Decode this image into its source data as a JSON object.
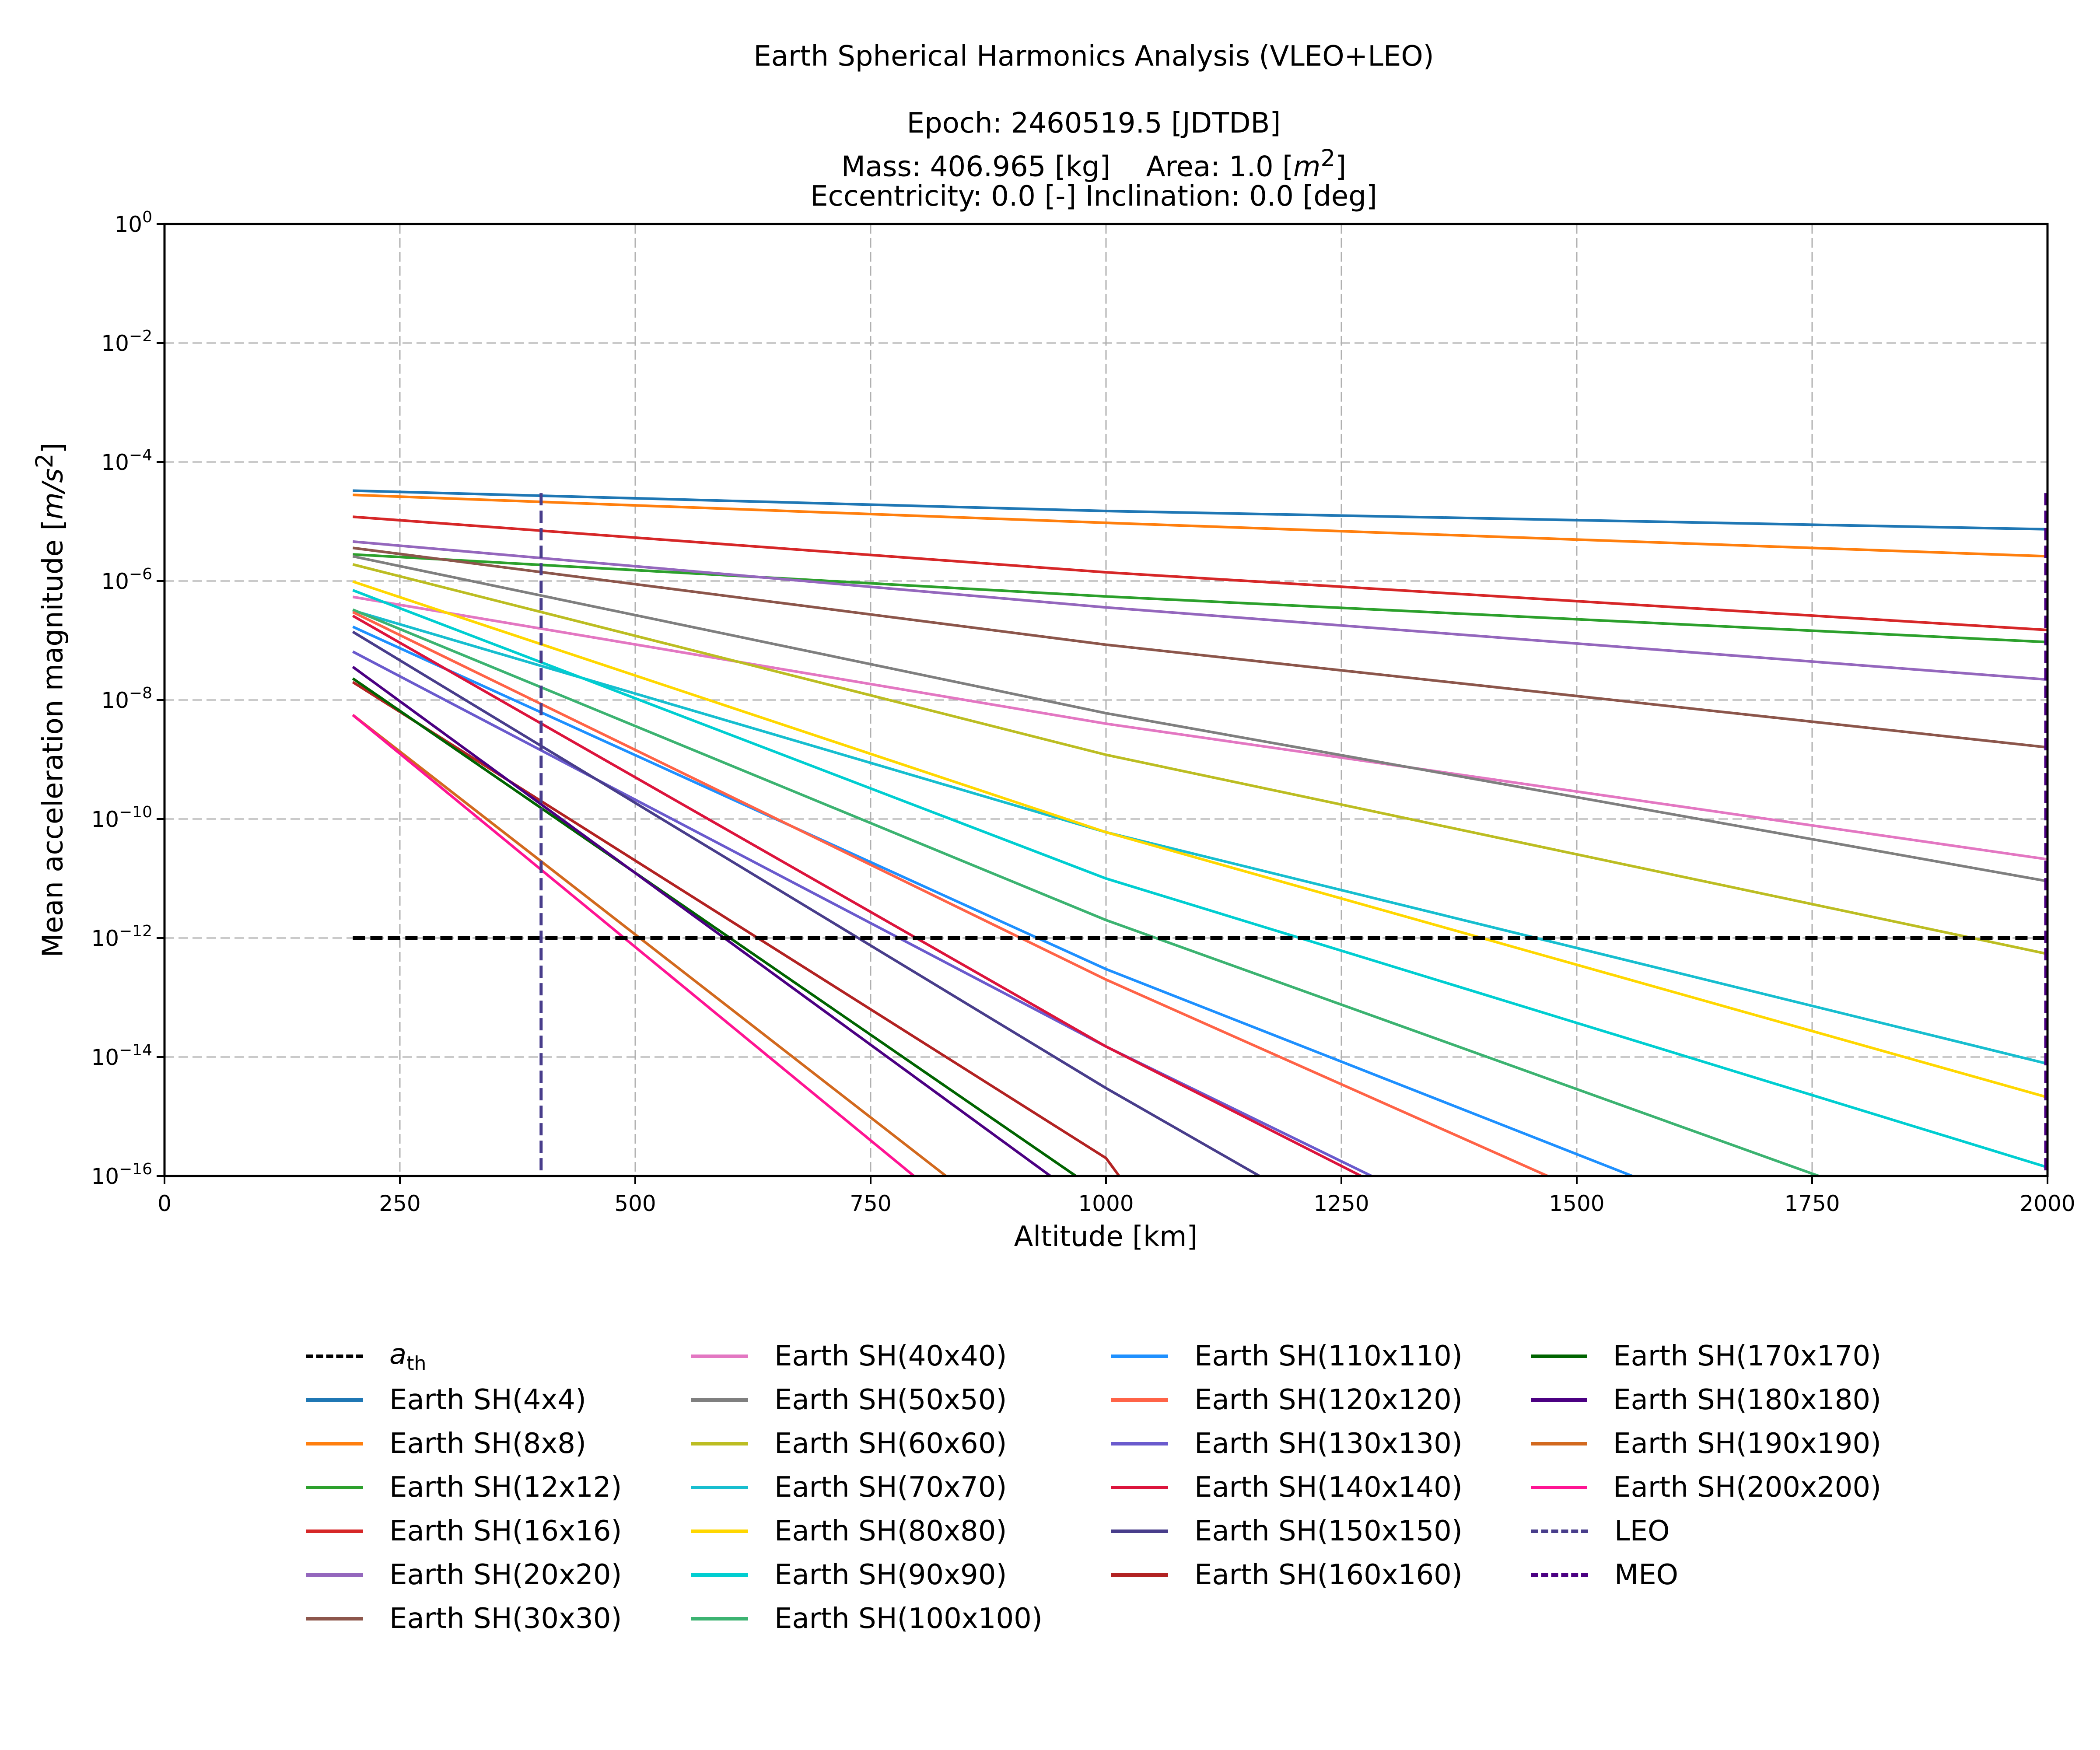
{
  "chart_data": {
    "type": "line",
    "title": "Earth Spherical Harmonics Analysis (VLEO+LEO)",
    "subtitle_lines": [
      "Epoch: 2460519.5 [JDTDB]",
      "Mass: 406.965 [kg]    Area: 1.0 [m^2]",
      "Eccentricity: 0.0 [-]    Inclination: 0.0 [deg]"
    ],
    "xlabel": "Altitude [km]",
    "ylabel": "Mean acceleration magnitude [m/s^2]",
    "xlim": [
      0,
      2000
    ],
    "ylim": [
      1e-16,
      1
    ],
    "yscale": "log",
    "grid": true,
    "xticks": [
      0,
      250,
      500,
      750,
      1000,
      1250,
      1500,
      1750,
      2000
    ],
    "yticks_exp": [
      0,
      -2,
      -4,
      -6,
      -8,
      -10,
      -12,
      -14,
      -16
    ],
    "legend_position": "below plot, 4 columns",
    "reference_lines": [
      {
        "name": "a_th",
        "type": "horizontal",
        "y": 1e-12,
        "x_range": [
          200,
          2000
        ],
        "color": "#000000",
        "style": "dashed"
      },
      {
        "name": "LEO",
        "type": "vertical",
        "x": 400,
        "y_range": [
          1e-16,
          3e-05
        ],
        "color": "#483d8b",
        "style": "dashed"
      },
      {
        "name": "MEO",
        "type": "vertical",
        "x": 2000,
        "y_range": [
          1e-16,
          3e-05
        ],
        "color": "#4b0082",
        "style": "dashed"
      }
    ],
    "series": [
      {
        "name": "Earth SH(4x4)",
        "color": "#1f77b4",
        "points": [
          [
            200,
            3.3e-05
          ],
          [
            1000,
            1.5e-05
          ],
          [
            2000,
            7.4e-06
          ]
        ]
      },
      {
        "name": "Earth SH(8x8)",
        "color": "#ff7f0e",
        "points": [
          [
            200,
            2.8e-05
          ],
          [
            1000,
            9.5e-06
          ],
          [
            2000,
            2.6e-06
          ]
        ]
      },
      {
        "name": "Earth SH(12x12)",
        "color": "#2ca02c",
        "points": [
          [
            200,
            2.8e-06
          ],
          [
            1000,
            5.5e-07
          ],
          [
            2000,
            9.4e-08
          ]
        ]
      },
      {
        "name": "Earth SH(16x16)",
        "color": "#d62728",
        "points": [
          [
            200,
            1.2e-05
          ],
          [
            1000,
            1.4e-06
          ],
          [
            2000,
            1.5e-07
          ]
        ]
      },
      {
        "name": "Earth SH(20x20)",
        "color": "#9467bd",
        "points": [
          [
            200,
            4.6e-06
          ],
          [
            1000,
            3.6e-07
          ],
          [
            2000,
            2.2e-08
          ]
        ]
      },
      {
        "name": "Earth SH(30x30)",
        "color": "#8c564b",
        "points": [
          [
            200,
            3.6e-06
          ],
          [
            1000,
            8.5e-08
          ],
          [
            2000,
            1.6e-09
          ]
        ]
      },
      {
        "name": "Earth SH(40x40)",
        "color": "#e377c2",
        "points": [
          [
            200,
            5.4e-07
          ],
          [
            1000,
            4e-09
          ],
          [
            2000,
            2.1e-11
          ]
        ]
      },
      {
        "name": "Earth SH(50x50)",
        "color": "#7f7f7f",
        "points": [
          [
            200,
            2.6e-06
          ],
          [
            1000,
            6e-09
          ],
          [
            2000,
            9e-12
          ]
        ]
      },
      {
        "name": "Earth SH(60x60)",
        "color": "#bcbd22",
        "points": [
          [
            200,
            1.9e-06
          ],
          [
            1000,
            1.2e-09
          ],
          [
            2000,
            5.4e-13
          ]
        ]
      },
      {
        "name": "Earth SH(70x70)",
        "color": "#17becf",
        "points": [
          [
            200,
            3.2e-07
          ],
          [
            1000,
            6e-11
          ],
          [
            2000,
            7.7e-15
          ]
        ]
      },
      {
        "name": "Earth SH(80x80)",
        "color": "#ffd700",
        "points": [
          [
            200,
            9.8e-07
          ],
          [
            1000,
            6e-11
          ],
          [
            2000,
            2.1e-15
          ]
        ]
      },
      {
        "name": "Earth SH(90x90)",
        "color": "#00ced1",
        "points": [
          [
            200,
            7e-07
          ],
          [
            1000,
            1e-11
          ],
          [
            2000,
            1.4e-16
          ]
        ]
      },
      {
        "name": "Earth SH(100x100)",
        "color": "#3cb371",
        "points": [
          [
            200,
            3.3e-07
          ],
          [
            1000,
            2e-12
          ],
          [
            1757,
            1e-16
          ]
        ]
      },
      {
        "name": "Earth SH(110x110)",
        "color": "#1e90ff",
        "points": [
          [
            200,
            1.7e-07
          ],
          [
            1000,
            3e-13
          ],
          [
            1559,
            1e-16
          ]
        ]
      },
      {
        "name": "Earth SH(120x120)",
        "color": "#ff6347",
        "points": [
          [
            200,
            3e-07
          ],
          [
            1000,
            2e-13
          ],
          [
            1469,
            1e-16
          ]
        ]
      },
      {
        "name": "Earth SH(130x130)",
        "color": "#6a5acd",
        "points": [
          [
            200,
            6.5e-08
          ],
          [
            1000,
            1.5e-14
          ],
          [
            1282,
            1e-16
          ]
        ]
      },
      {
        "name": "Earth SH(140x140)",
        "color": "#dc143c",
        "points": [
          [
            200,
            2.6e-07
          ],
          [
            1000,
            1.5e-14
          ],
          [
            1271,
            1e-16
          ]
        ]
      },
      {
        "name": "Earth SH(150x150)",
        "color": "#483d8b",
        "points": [
          [
            200,
            1.4e-07
          ],
          [
            1000,
            3e-15
          ],
          [
            1163,
            1e-16
          ]
        ]
      },
      {
        "name": "Earth SH(160x160)",
        "color": "#b22222",
        "points": [
          [
            200,
            2e-08
          ],
          [
            1000,
            2e-16
          ],
          [
            1014,
            1e-16
          ]
        ]
      },
      {
        "name": "Earth SH(170x170)",
        "color": "#006400",
        "points": [
          [
            200,
            2.3e-08
          ],
          [
            968,
            1e-16
          ]
        ]
      },
      {
        "name": "Earth SH(180x180)",
        "color": "#4b0082",
        "points": [
          [
            200,
            3.6e-08
          ],
          [
            941,
            1e-16
          ]
        ]
      },
      {
        "name": "Earth SH(190x190)",
        "color": "#d2691e",
        "points": [
          [
            200,
            5.6e-09
          ],
          [
            830,
            1e-16
          ]
        ]
      },
      {
        "name": "Earth SH(200x200)",
        "color": "#ff1493",
        "points": [
          [
            200,
            5.6e-09
          ],
          [
            796,
            1e-16
          ]
        ]
      }
    ]
  },
  "titles": {
    "main": "Earth Spherical Harmonics Analysis (VLEO+LEO)",
    "epoch": "Epoch: 2460519.5 [JDTDB]",
    "mass": "Mass: 406.965 [kg]",
    "area": "Area: 1.0 [",
    "area_unit": "m",
    "area_exp": "2",
    "ecc": "Eccentricity: 0.0 [-]    Inclination: 0.0 [deg]"
  },
  "axes": {
    "xlabel": "Altitude [km]",
    "ylabel_text": "Mean acceleration magnitude [",
    "ylabel_unit": "m/s",
    "ylabel_exp": "2",
    "xtick_labels": [
      "0",
      "250",
      "500",
      "750",
      "1000",
      "1250",
      "1500",
      "1750",
      "2000"
    ],
    "ytick_base": "10",
    "ytick_exps": [
      "0",
      "−2",
      "−4",
      "−6",
      "−8",
      "−10",
      "−12",
      "−14",
      "−16"
    ]
  },
  "legend": {
    "columns": [
      [
        {
          "label": "a",
          "sub": "th",
          "color": "#000000",
          "dashed": true
        },
        {
          "label": "Earth SH(4x4)",
          "color": "#1f77b4"
        },
        {
          "label": "Earth SH(8x8)",
          "color": "#ff7f0e"
        },
        {
          "label": "Earth SH(12x12)",
          "color": "#2ca02c"
        },
        {
          "label": "Earth SH(16x16)",
          "color": "#d62728"
        },
        {
          "label": "Earth SH(20x20)",
          "color": "#9467bd"
        },
        {
          "label": "Earth SH(30x30)",
          "color": "#8c564b"
        }
      ],
      [
        {
          "label": "Earth SH(40x40)",
          "color": "#e377c2"
        },
        {
          "label": "Earth SH(50x50)",
          "color": "#7f7f7f"
        },
        {
          "label": "Earth SH(60x60)",
          "color": "#bcbd22"
        },
        {
          "label": "Earth SH(70x70)",
          "color": "#17becf"
        },
        {
          "label": "Earth SH(80x80)",
          "color": "#ffd700"
        },
        {
          "label": "Earth SH(90x90)",
          "color": "#00ced1"
        },
        {
          "label": "Earth SH(100x100)",
          "color": "#3cb371"
        }
      ],
      [
        {
          "label": "Earth SH(110x110)",
          "color": "#1e90ff"
        },
        {
          "label": "Earth SH(120x120)",
          "color": "#ff6347"
        },
        {
          "label": "Earth SH(130x130)",
          "color": "#6a5acd"
        },
        {
          "label": "Earth SH(140x140)",
          "color": "#dc143c"
        },
        {
          "label": "Earth SH(150x150)",
          "color": "#483d8b"
        },
        {
          "label": "Earth SH(160x160)",
          "color": "#b22222"
        }
      ],
      [
        {
          "label": "Earth SH(170x170)",
          "color": "#006400"
        },
        {
          "label": "Earth SH(180x180)",
          "color": "#4b0082"
        },
        {
          "label": "Earth SH(190x190)",
          "color": "#d2691e"
        },
        {
          "label": "Earth SH(200x200)",
          "color": "#ff1493"
        },
        {
          "label": "LEO",
          "color": "#483d8b",
          "dashed": true
        },
        {
          "label": "MEO",
          "color": "#4b0082",
          "dashed": true
        }
      ]
    ]
  }
}
